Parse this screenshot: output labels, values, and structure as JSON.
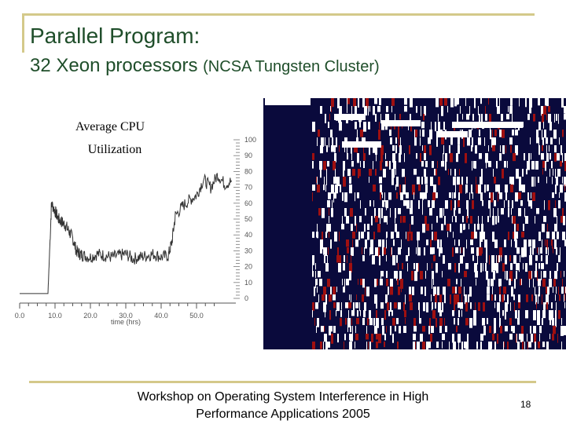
{
  "slide": {
    "title": "Parallel Program:",
    "subtitle_main": "32 Xeon processors",
    "subtitle_paren": "(NCSA Tungsten Cluster)",
    "footer_line1": "Workshop on Operating System Interference in High",
    "footer_line2": "Performance Applications 2005",
    "page_number": "18"
  },
  "colors": {
    "title": "#1f4e2a",
    "rule": "#d4c98a",
    "map_dark": "#0a0a3c",
    "map_red": "#a01010",
    "map_white": "#ffffff"
  },
  "chart_data": {
    "type": "line",
    "title": "Average CPU Utilization",
    "xlabel": "time (hrs)",
    "ylabel": "",
    "xlim": [
      0,
      60
    ],
    "ylim": [
      0,
      100
    ],
    "x_ticks": [
      "0.0",
      "10.0",
      "20.0",
      "30.0",
      "40.0",
      "50.0"
    ],
    "x_tick_values": [
      0,
      10,
      20,
      30,
      40,
      50
    ],
    "y_ticks": [
      "0",
      "10",
      "20",
      "30",
      "40",
      "50",
      "60",
      "70",
      "80",
      "90",
      "100"
    ],
    "y_tick_values": [
      0,
      10,
      20,
      30,
      40,
      50,
      60,
      70,
      80,
      90,
      100
    ],
    "series": [
      {
        "name": "",
        "x": [
          0,
          4,
          8,
          8.3,
          9,
          10,
          11,
          12,
          13,
          14,
          15,
          16,
          17,
          18,
          20,
          22,
          24,
          26,
          28,
          30,
          32,
          34,
          36,
          38,
          40,
          42,
          43,
          44,
          46,
          48,
          50,
          52,
          54,
          56,
          58,
          60
        ],
        "y": [
          3,
          3,
          3,
          20,
          60,
          55,
          50,
          48,
          46,
          42,
          38,
          30,
          28,
          27,
          26,
          28,
          27,
          26,
          27,
          28,
          25,
          26,
          27,
          28,
          26,
          27,
          35,
          52,
          58,
          62,
          65,
          75,
          70,
          78,
          72,
          74
        ]
      }
    ]
  }
}
